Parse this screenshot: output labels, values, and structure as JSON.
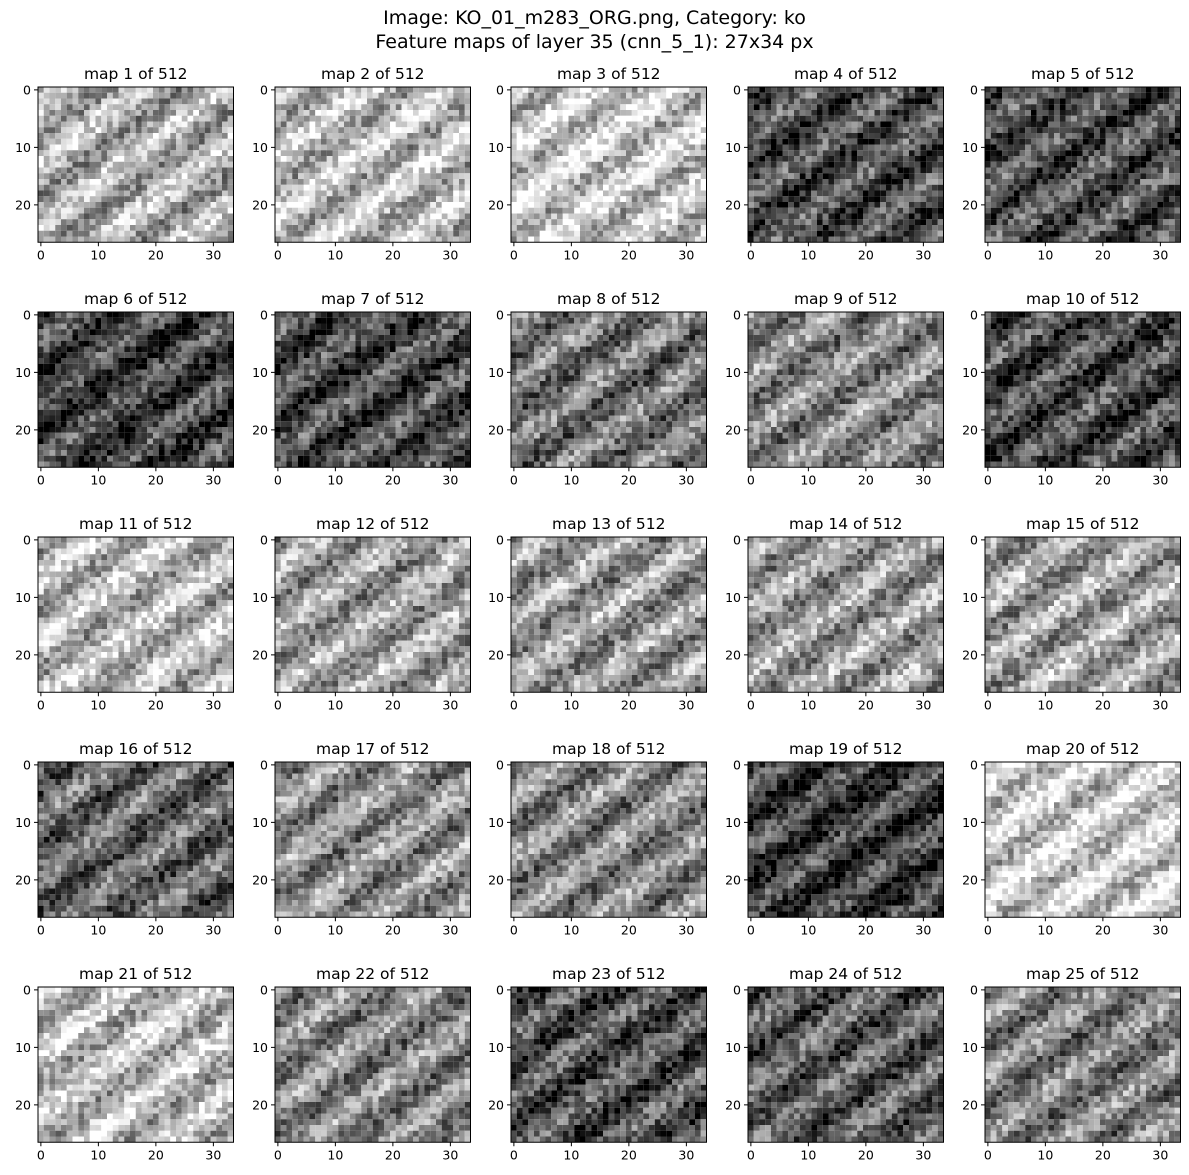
{
  "figure": {
    "title_line1": "Image: KO_01_m283_ORG.png, Category: ko",
    "title_line2": "Feature maps of layer 35 (cnn_5_1): 27x34 px"
  },
  "chart_data": {
    "type": "heatmap",
    "colormap": "grayscale",
    "map_width": 34,
    "map_height": 27,
    "x_ticks": [
      0,
      10,
      20,
      30
    ],
    "y_ticks": [
      0,
      10,
      20
    ],
    "x_range": [
      -0.5,
      33.5
    ],
    "y_range": [
      26.5,
      -0.5
    ],
    "grid": false,
    "panels": [
      {
        "title": "map 1 of 512",
        "mean_brightness": 0.68
      },
      {
        "title": "map 2 of 512",
        "mean_brightness": 0.74
      },
      {
        "title": "map 3 of 512",
        "mean_brightness": 0.78
      },
      {
        "title": "map 4 of 512",
        "mean_brightness": 0.3
      },
      {
        "title": "map 5 of 512",
        "mean_brightness": 0.3
      },
      {
        "title": "map 6 of 512",
        "mean_brightness": 0.25
      },
      {
        "title": "map 7 of 512",
        "mean_brightness": 0.27
      },
      {
        "title": "map 8 of 512",
        "mean_brightness": 0.45
      },
      {
        "title": "map 9 of 512",
        "mean_brightness": 0.52
      },
      {
        "title": "map 10 of 512",
        "mean_brightness": 0.27
      },
      {
        "title": "map 11 of 512",
        "mean_brightness": 0.72
      },
      {
        "title": "map 12 of 512",
        "mean_brightness": 0.62
      },
      {
        "title": "map 13 of 512",
        "mean_brightness": 0.6
      },
      {
        "title": "map 14 of 512",
        "mean_brightness": 0.6
      },
      {
        "title": "map 15 of 512",
        "mean_brightness": 0.62
      },
      {
        "title": "map 16 of 512",
        "mean_brightness": 0.4
      },
      {
        "title": "map 17 of 512",
        "mean_brightness": 0.55
      },
      {
        "title": "map 18 of 512",
        "mean_brightness": 0.52
      },
      {
        "title": "map 19 of 512",
        "mean_brightness": 0.22
      },
      {
        "title": "map 20 of 512",
        "mean_brightness": 0.8
      },
      {
        "title": "map 21 of 512",
        "mean_brightness": 0.74
      },
      {
        "title": "map 22 of 512",
        "mean_brightness": 0.52
      },
      {
        "title": "map 23 of 512",
        "mean_brightness": 0.3
      },
      {
        "title": "map 24 of 512",
        "mean_brightness": 0.35
      },
      {
        "title": "map 25 of 512",
        "mean_brightness": 0.5
      }
    ]
  }
}
